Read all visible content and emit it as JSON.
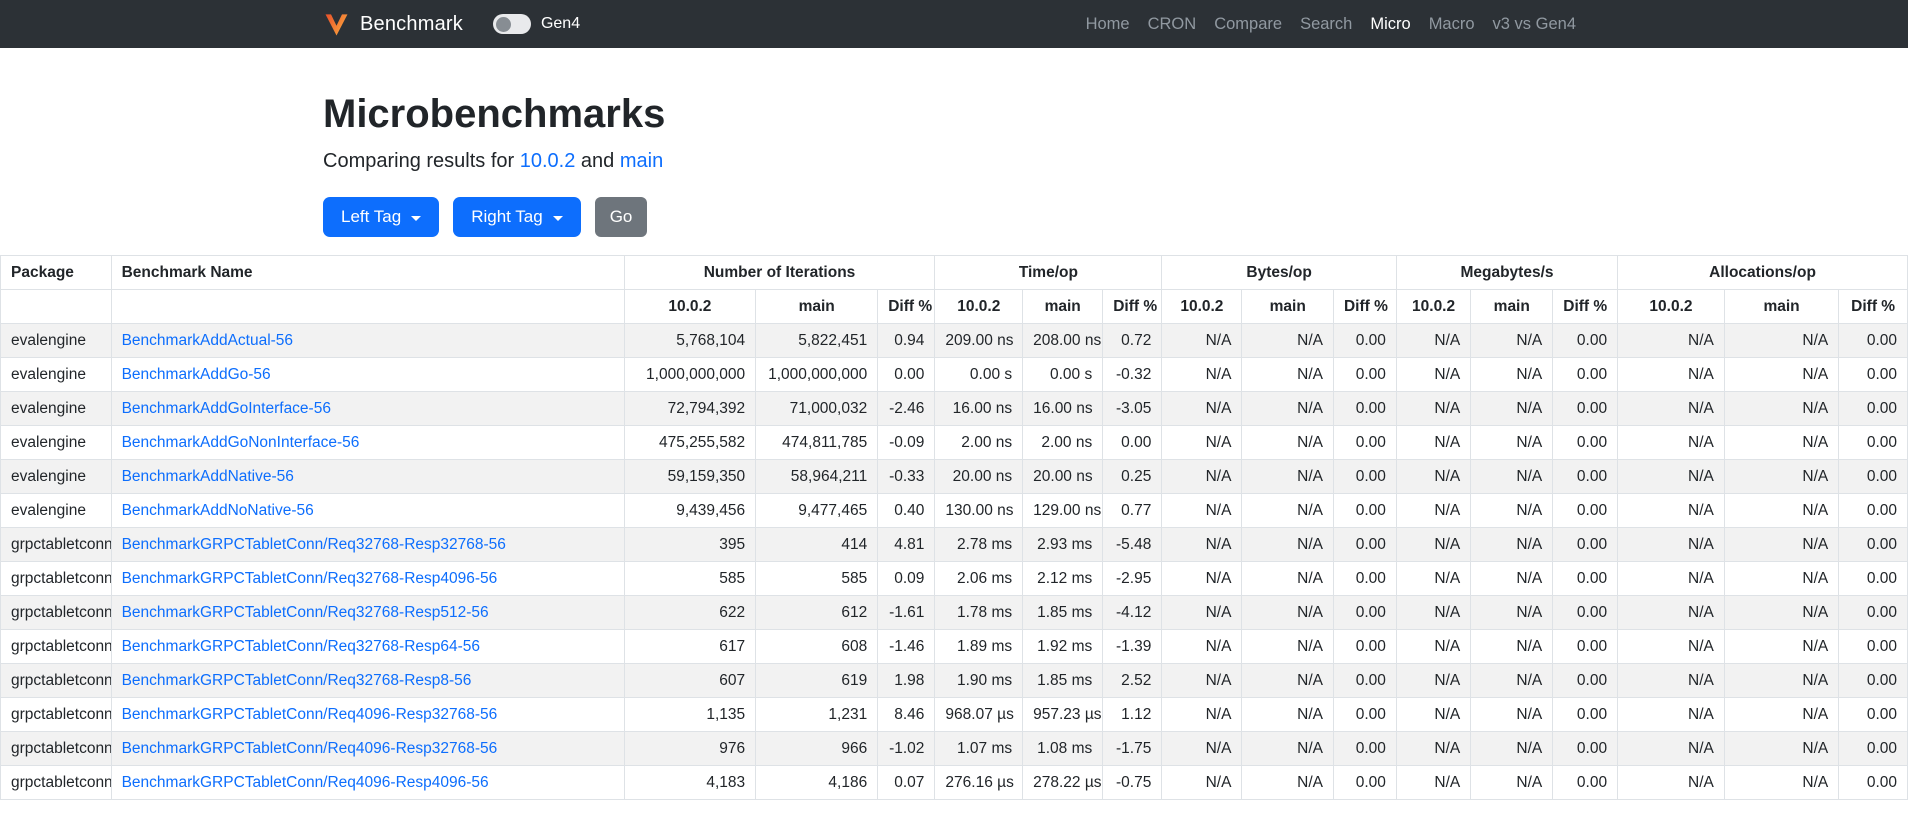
{
  "navbar": {
    "brand": "Benchmark",
    "toggle_label": "Gen4",
    "links": [
      {
        "label": "Home",
        "active": false
      },
      {
        "label": "CRON",
        "active": false
      },
      {
        "label": "Compare",
        "active": false
      },
      {
        "label": "Search",
        "active": false
      },
      {
        "label": "Micro",
        "active": true
      },
      {
        "label": "Macro",
        "active": false
      },
      {
        "label": "v3 vs Gen4",
        "active": false
      }
    ]
  },
  "header": {
    "title": "Microbenchmarks",
    "subtitle_prefix": "Comparing results for",
    "left_version": "10.0.2",
    "conjunction": "and",
    "right_version": "main"
  },
  "controls": {
    "left_tag_label": "Left Tag",
    "right_tag_label": "Right Tag",
    "go_label": "Go"
  },
  "table": {
    "columns": {
      "package": "Package",
      "benchmark": "Benchmark Name"
    },
    "groups": [
      "Number of Iterations",
      "Time/op",
      "Bytes/op",
      "Megabytes/s",
      "Allocations/op"
    ],
    "sub_columns": [
      "10.0.2",
      "main",
      "Diff %"
    ],
    "rows": [
      {
        "package": "evalengine",
        "name": "BenchmarkAddActual-56",
        "iterations": [
          "5,768,104",
          "5,822,451",
          "0.94"
        ],
        "time_op": [
          "209.00 ns",
          "208.00 ns",
          "0.72"
        ],
        "bytes_op": [
          "N/A",
          "N/A",
          "0.00"
        ],
        "megabytes_s": [
          "N/A",
          "N/A",
          "0.00"
        ],
        "allocations_op": [
          "N/A",
          "N/A",
          "0.00"
        ]
      },
      {
        "package": "evalengine",
        "name": "BenchmarkAddGo-56",
        "iterations": [
          "1,000,000,000",
          "1,000,000,000",
          "0.00"
        ],
        "time_op": [
          "0.00 s",
          "0.00 s",
          "-0.32"
        ],
        "bytes_op": [
          "N/A",
          "N/A",
          "0.00"
        ],
        "megabytes_s": [
          "N/A",
          "N/A",
          "0.00"
        ],
        "allocations_op": [
          "N/A",
          "N/A",
          "0.00"
        ]
      },
      {
        "package": "evalengine",
        "name": "BenchmarkAddGoInterface-56",
        "iterations": [
          "72,794,392",
          "71,000,032",
          "-2.46"
        ],
        "time_op": [
          "16.00 ns",
          "16.00 ns",
          "-3.05"
        ],
        "bytes_op": [
          "N/A",
          "N/A",
          "0.00"
        ],
        "megabytes_s": [
          "N/A",
          "N/A",
          "0.00"
        ],
        "allocations_op": [
          "N/A",
          "N/A",
          "0.00"
        ]
      },
      {
        "package": "evalengine",
        "name": "BenchmarkAddGoNonInterface-56",
        "iterations": [
          "475,255,582",
          "474,811,785",
          "-0.09"
        ],
        "time_op": [
          "2.00 ns",
          "2.00 ns",
          "0.00"
        ],
        "bytes_op": [
          "N/A",
          "N/A",
          "0.00"
        ],
        "megabytes_s": [
          "N/A",
          "N/A",
          "0.00"
        ],
        "allocations_op": [
          "N/A",
          "N/A",
          "0.00"
        ]
      },
      {
        "package": "evalengine",
        "name": "BenchmarkAddNative-56",
        "iterations": [
          "59,159,350",
          "58,964,211",
          "-0.33"
        ],
        "time_op": [
          "20.00 ns",
          "20.00 ns",
          "0.25"
        ],
        "bytes_op": [
          "N/A",
          "N/A",
          "0.00"
        ],
        "megabytes_s": [
          "N/A",
          "N/A",
          "0.00"
        ],
        "allocations_op": [
          "N/A",
          "N/A",
          "0.00"
        ]
      },
      {
        "package": "evalengine",
        "name": "BenchmarkAddNoNative-56",
        "iterations": [
          "9,439,456",
          "9,477,465",
          "0.40"
        ],
        "time_op": [
          "130.00 ns",
          "129.00 ns",
          "0.77"
        ],
        "bytes_op": [
          "N/A",
          "N/A",
          "0.00"
        ],
        "megabytes_s": [
          "N/A",
          "N/A",
          "0.00"
        ],
        "allocations_op": [
          "N/A",
          "N/A",
          "0.00"
        ]
      },
      {
        "package": "grpctabletconn",
        "name": "BenchmarkGRPCTabletConn/Req32768-Resp32768-56",
        "iterations": [
          "395",
          "414",
          "4.81"
        ],
        "time_op": [
          "2.78 ms",
          "2.93 ms",
          "-5.48"
        ],
        "bytes_op": [
          "N/A",
          "N/A",
          "0.00"
        ],
        "megabytes_s": [
          "N/A",
          "N/A",
          "0.00"
        ],
        "allocations_op": [
          "N/A",
          "N/A",
          "0.00"
        ]
      },
      {
        "package": "grpctabletconn",
        "name": "BenchmarkGRPCTabletConn/Req32768-Resp4096-56",
        "iterations": [
          "585",
          "585",
          "0.09"
        ],
        "time_op": [
          "2.06 ms",
          "2.12 ms",
          "-2.95"
        ],
        "bytes_op": [
          "N/A",
          "N/A",
          "0.00"
        ],
        "megabytes_s": [
          "N/A",
          "N/A",
          "0.00"
        ],
        "allocations_op": [
          "N/A",
          "N/A",
          "0.00"
        ]
      },
      {
        "package": "grpctabletconn",
        "name": "BenchmarkGRPCTabletConn/Req32768-Resp512-56",
        "iterations": [
          "622",
          "612",
          "-1.61"
        ],
        "time_op": [
          "1.78 ms",
          "1.85 ms",
          "-4.12"
        ],
        "bytes_op": [
          "N/A",
          "N/A",
          "0.00"
        ],
        "megabytes_s": [
          "N/A",
          "N/A",
          "0.00"
        ],
        "allocations_op": [
          "N/A",
          "N/A",
          "0.00"
        ]
      },
      {
        "package": "grpctabletconn",
        "name": "BenchmarkGRPCTabletConn/Req32768-Resp64-56",
        "iterations": [
          "617",
          "608",
          "-1.46"
        ],
        "time_op": [
          "1.89 ms",
          "1.92 ms",
          "-1.39"
        ],
        "bytes_op": [
          "N/A",
          "N/A",
          "0.00"
        ],
        "megabytes_s": [
          "N/A",
          "N/A",
          "0.00"
        ],
        "allocations_op": [
          "N/A",
          "N/A",
          "0.00"
        ]
      },
      {
        "package": "grpctabletconn",
        "name": "BenchmarkGRPCTabletConn/Req32768-Resp8-56",
        "iterations": [
          "607",
          "619",
          "1.98"
        ],
        "time_op": [
          "1.90 ms",
          "1.85 ms",
          "2.52"
        ],
        "bytes_op": [
          "N/A",
          "N/A",
          "0.00"
        ],
        "megabytes_s": [
          "N/A",
          "N/A",
          "0.00"
        ],
        "allocations_op": [
          "N/A",
          "N/A",
          "0.00"
        ]
      },
      {
        "package": "grpctabletconn",
        "name": "BenchmarkGRPCTabletConn/Req4096-Resp32768-56",
        "iterations": [
          "1,135",
          "1,231",
          "8.46"
        ],
        "time_op": [
          "968.07 µs",
          "957.23 µs",
          "1.12"
        ],
        "bytes_op": [
          "N/A",
          "N/A",
          "0.00"
        ],
        "megabytes_s": [
          "N/A",
          "N/A",
          "0.00"
        ],
        "allocations_op": [
          "N/A",
          "N/A",
          "0.00"
        ]
      },
      {
        "package": "grpctabletconn",
        "name": "BenchmarkGRPCTabletConn/Req4096-Resp32768-56",
        "iterations": [
          "976",
          "966",
          "-1.02"
        ],
        "time_op": [
          "1.07 ms",
          "1.08 ms",
          "-1.75"
        ],
        "bytes_op": [
          "N/A",
          "N/A",
          "0.00"
        ],
        "megabytes_s": [
          "N/A",
          "N/A",
          "0.00"
        ],
        "allocations_op": [
          "N/A",
          "N/A",
          "0.00"
        ]
      },
      {
        "package": "grpctabletconn",
        "name": "BenchmarkGRPCTabletConn/Req4096-Resp4096-56",
        "iterations": [
          "4,183",
          "4,186",
          "0.07"
        ],
        "time_op": [
          "276.16 µs",
          "278.22 µs",
          "-0.75"
        ],
        "bytes_op": [
          "N/A",
          "N/A",
          "0.00"
        ],
        "megabytes_s": [
          "N/A",
          "N/A",
          "0.00"
        ],
        "allocations_op": [
          "N/A",
          "N/A",
          "0.00"
        ]
      }
    ]
  },
  "colors": {
    "navbar_bg": "#2c3136",
    "accent_blue": "#0d6efd",
    "secondary_gray": "#6e757c",
    "row_stripe": "#f2f2f2",
    "table_border": "#dee2e6",
    "logo_orange_start": "#f9a13c",
    "logo_orange_end": "#e8502a"
  }
}
